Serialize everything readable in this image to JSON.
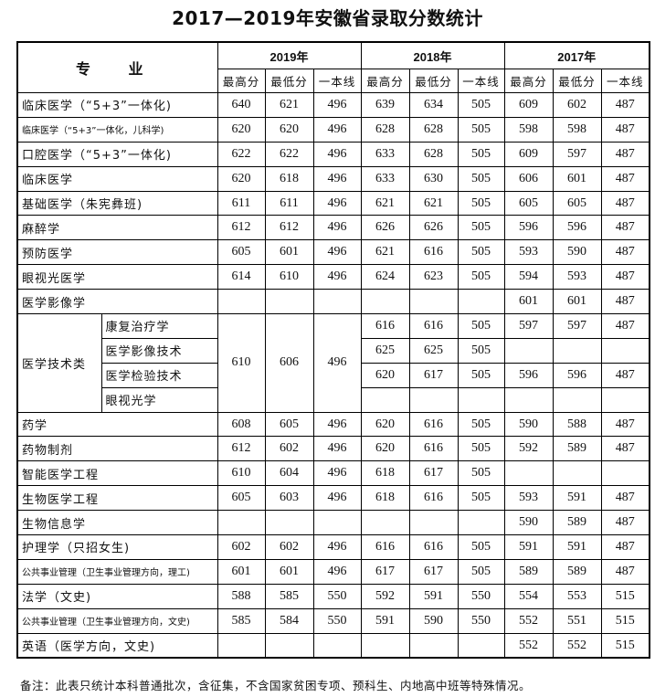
{
  "title": "2017—2019年安徽省录取分数统计",
  "header": {
    "major": "专 业",
    "years": [
      "2019年",
      "2018年",
      "2017年"
    ],
    "subcols": [
      "最高分",
      "最低分",
      "一本线"
    ]
  },
  "rows": [
    {
      "name": "临床医学（“5+3”一体化)",
      "values": [
        "640",
        "621",
        "496",
        "639",
        "634",
        "505",
        "609",
        "602",
        "487"
      ]
    },
    {
      "name": "临床医学（“5+3”一体化，儿科学)",
      "small": true,
      "values": [
        "620",
        "620",
        "496",
        "628",
        "628",
        "505",
        "598",
        "598",
        "487"
      ]
    },
    {
      "name": "口腔医学（“5+3”一体化)",
      "values": [
        "622",
        "622",
        "496",
        "633",
        "628",
        "505",
        "609",
        "597",
        "487"
      ]
    },
    {
      "name": "临床医学",
      "values": [
        "620",
        "618",
        "496",
        "633",
        "630",
        "505",
        "606",
        "601",
        "487"
      ]
    },
    {
      "name": "基础医学（朱宪彝班)",
      "values": [
        "611",
        "611",
        "496",
        "621",
        "621",
        "505",
        "605",
        "605",
        "487"
      ]
    },
    {
      "name": "麻醉学",
      "values": [
        "612",
        "612",
        "496",
        "626",
        "626",
        "505",
        "596",
        "596",
        "487"
      ]
    },
    {
      "name": "预防医学",
      "values": [
        "605",
        "601",
        "496",
        "621",
        "616",
        "505",
        "593",
        "590",
        "487"
      ]
    },
    {
      "name": "眼视光医学",
      "values": [
        "614",
        "610",
        "496",
        "624",
        "623",
        "505",
        "594",
        "593",
        "487"
      ]
    },
    {
      "name": "医学影像学",
      "values": [
        "",
        "",
        "",
        "",
        "",
        "",
        "601",
        "601",
        "487"
      ]
    },
    {
      "group": "医学技术类",
      "values2019": [
        "610",
        "606",
        "496"
      ],
      "subs": [
        {
          "name": "康复治疗学",
          "values": [
            "616",
            "616",
            "505",
            "597",
            "597",
            "487"
          ]
        },
        {
          "name": "医学影像技术",
          "values": [
            "625",
            "625",
            "505",
            "",
            "",
            ""
          ]
        },
        {
          "name": "医学检验技术",
          "values": [
            "620",
            "617",
            "505",
            "596",
            "596",
            "487"
          ]
        },
        {
          "name": "眼视光学",
          "values": [
            "",
            "",
            "",
            "",
            "",
            ""
          ]
        }
      ]
    },
    {
      "name": "药学",
      "values": [
        "608",
        "605",
        "496",
        "620",
        "616",
        "505",
        "590",
        "588",
        "487"
      ]
    },
    {
      "name": "药物制剂",
      "values": [
        "612",
        "602",
        "496",
        "620",
        "616",
        "505",
        "592",
        "589",
        "487"
      ]
    },
    {
      "name": "智能医学工程",
      "values": [
        "610",
        "604",
        "496",
        "618",
        "617",
        "505",
        "",
        "",
        ""
      ]
    },
    {
      "name": "生物医学工程",
      "values": [
        "605",
        "603",
        "496",
        "618",
        "616",
        "505",
        "593",
        "591",
        "487"
      ]
    },
    {
      "name": "生物信息学",
      "values": [
        "",
        "",
        "",
        "",
        "",
        "",
        "590",
        "589",
        "487"
      ]
    },
    {
      "name": "护理学（只招女生)",
      "values": [
        "602",
        "602",
        "496",
        "616",
        "616",
        "505",
        "591",
        "591",
        "487"
      ]
    },
    {
      "name": "公共事业管理（卫生事业管理方向，理工)",
      "small": true,
      "values": [
        "601",
        "601",
        "496",
        "617",
        "617",
        "505",
        "589",
        "589",
        "487"
      ]
    },
    {
      "name": "法学（文史)",
      "values": [
        "588",
        "585",
        "550",
        "592",
        "591",
        "550",
        "554",
        "553",
        "515"
      ]
    },
    {
      "name": "公共事业管理（卫生事业管理方向，文史)",
      "small": true,
      "values": [
        "585",
        "584",
        "550",
        "591",
        "590",
        "550",
        "552",
        "551",
        "515"
      ]
    },
    {
      "name": "英语（医学方向，文史)",
      "values": [
        "",
        "",
        "",
        "",
        "",
        "",
        "552",
        "552",
        "515"
      ]
    }
  ],
  "note": "备注：此表只统计本科普通批次，含征集，不含国家贫困专项、预科生、内地高中班等特殊情况。"
}
